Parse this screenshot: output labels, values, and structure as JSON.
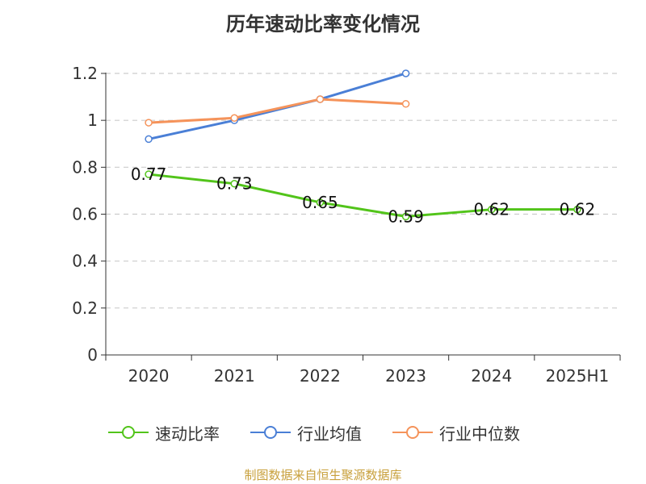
{
  "title": "历年速动比率变化情况",
  "source": "制图数据来自恒生聚源数据库",
  "chart_data": {
    "type": "line",
    "title": "历年速动比率变化情况",
    "categories": [
      "2020",
      "2021",
      "2022",
      "2023",
      "2024",
      "2025H1"
    ],
    "ylim": [
      0,
      1.2
    ],
    "yticks": [
      "0",
      "0.2",
      "0.4",
      "0.6",
      "0.8",
      "1",
      "1.2"
    ],
    "grid": true,
    "legend_position": "bottom",
    "series": [
      {
        "name": "速动比率",
        "color": "#52c41a",
        "show_labels": true,
        "values": [
          0.77,
          0.73,
          0.65,
          0.59,
          0.62,
          0.62
        ],
        "labels": [
          "0.77",
          "0.73",
          "0.65",
          "0.59",
          "0.62",
          "0.62"
        ]
      },
      {
        "name": "行业均值",
        "color": "#4a7fd6",
        "show_labels": false,
        "values": [
          0.92,
          1.0,
          1.09,
          1.2,
          null,
          null
        ]
      },
      {
        "name": "行业中位数",
        "color": "#f5935a",
        "show_labels": false,
        "values": [
          0.99,
          1.01,
          1.09,
          1.07,
          null,
          null
        ]
      }
    ]
  }
}
